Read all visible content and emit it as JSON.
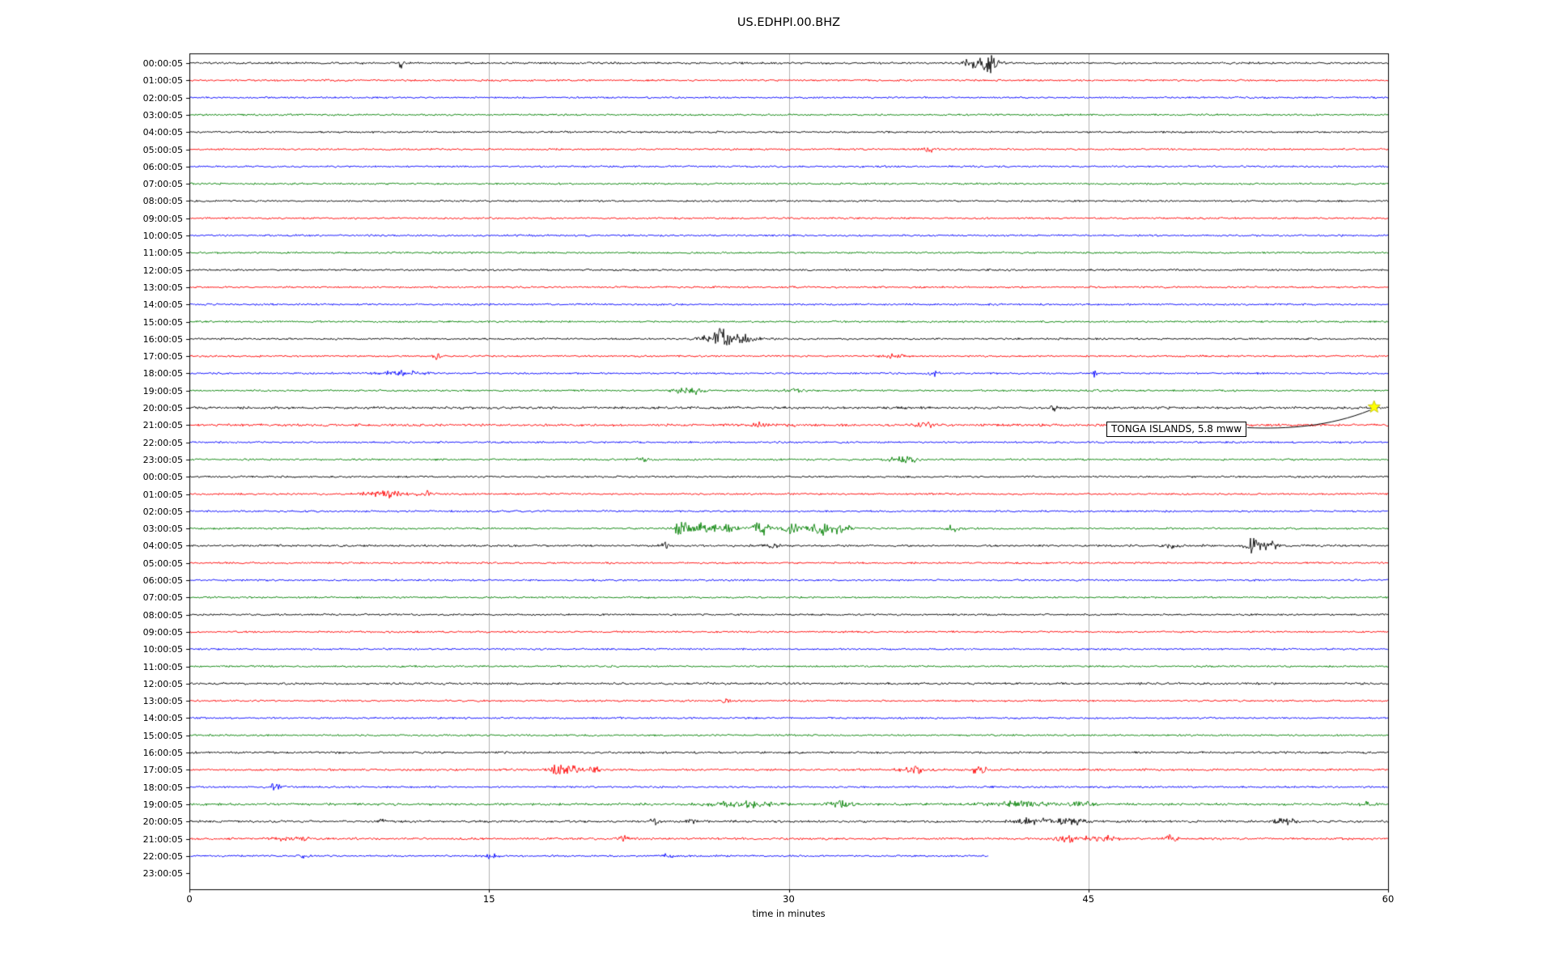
{
  "chart_data": {
    "type": "line",
    "variant": "helicorder-seismogram",
    "title": "US.EDHPI.00.BHZ",
    "xlabel": "time in minutes",
    "xlim": [
      0,
      60
    ],
    "xticks": [
      0,
      15,
      30,
      45,
      60
    ],
    "grid": "vertical-only",
    "grid_color": "#b0b0b0",
    "trace_colors_cycle": [
      "#000000",
      "#ff0000",
      "#0000ff",
      "#008000"
    ],
    "rows": [
      {
        "label": "00:00:05",
        "noise": 1.1
      },
      {
        "label": "01:00:05"
      },
      {
        "label": "02:00:05"
      },
      {
        "label": "03:00:05"
      },
      {
        "label": "04:00:05"
      },
      {
        "label": "05:00:05"
      },
      {
        "label": "06:00:05"
      },
      {
        "label": "07:00:05"
      },
      {
        "label": "08:00:05"
      },
      {
        "label": "09:00:05"
      },
      {
        "label": "10:00:05"
      },
      {
        "label": "11:00:05"
      },
      {
        "label": "12:00:05"
      },
      {
        "label": "13:00:05"
      },
      {
        "label": "14:00:05"
      },
      {
        "label": "15:00:05"
      },
      {
        "label": "16:00:05"
      },
      {
        "label": "17:00:05"
      },
      {
        "label": "18:00:05"
      },
      {
        "label": "19:00:05"
      },
      {
        "label": "20:00:05",
        "noise": 1.3
      },
      {
        "label": "21:00:05",
        "noise": 1.3
      },
      {
        "label": "22:00:05"
      },
      {
        "label": "23:00:05"
      },
      {
        "label": "00:00:05"
      },
      {
        "label": "01:00:05"
      },
      {
        "label": "02:00:05"
      },
      {
        "label": "03:00:05"
      },
      {
        "label": "04:00:05",
        "noise": 1.15
      },
      {
        "label": "05:00:05"
      },
      {
        "label": "06:00:05"
      },
      {
        "label": "07:00:05"
      },
      {
        "label": "08:00:05"
      },
      {
        "label": "09:00:05"
      },
      {
        "label": "10:00:05"
      },
      {
        "label": "11:00:05"
      },
      {
        "label": "12:00:05",
        "noise": 1.15
      },
      {
        "label": "13:00:05"
      },
      {
        "label": "14:00:05"
      },
      {
        "label": "15:00:05"
      },
      {
        "label": "16:00:05",
        "noise": 1.1
      },
      {
        "label": "17:00:05",
        "noise": 1.15
      },
      {
        "label": "18:00:05"
      },
      {
        "label": "19:00:05",
        "noise": 1.25
      },
      {
        "label": "20:00:05",
        "noise": 1.2
      },
      {
        "label": "21:00:05",
        "noise": 1.2
      },
      {
        "label": "22:00:05",
        "end_minute": 40
      },
      {
        "label": "23:00:05",
        "no_trace": true
      }
    ],
    "events": [
      {
        "row": 0,
        "minute": 10.6,
        "amp": 7,
        "width": 0.08
      },
      {
        "row": 0,
        "minute": 39.2,
        "amp": 9,
        "width": 0.25
      },
      {
        "row": 0,
        "minute": 40.0,
        "amp": 13,
        "width": 0.35
      },
      {
        "row": 5,
        "minute": 37.0,
        "amp": 3,
        "width": 0.3
      },
      {
        "row": 16,
        "minute": 25.8,
        "amp": 4,
        "width": 0.3
      },
      {
        "row": 16,
        "minute": 26.6,
        "amp": 15,
        "width": 0.25
      },
      {
        "row": 16,
        "minute": 27.6,
        "amp": 7,
        "width": 0.6
      },
      {
        "row": 17,
        "minute": 12.4,
        "amp": 6,
        "width": 0.12
      },
      {
        "row": 17,
        "minute": 35.2,
        "amp": 3,
        "width": 0.4
      },
      {
        "row": 18,
        "minute": 10.7,
        "amp": 3,
        "width": 0.8
      },
      {
        "row": 18,
        "minute": 37.3,
        "amp": 4,
        "width": 0.15
      },
      {
        "row": 18,
        "minute": 45.3,
        "amp": 10,
        "width": 0.06
      },
      {
        "row": 19,
        "minute": 25.0,
        "amp": 5,
        "width": 0.6
      },
      {
        "row": 19,
        "minute": 30.3,
        "amp": 3,
        "width": 0.4
      },
      {
        "row": 20,
        "minute": 43.3,
        "amp": 3,
        "width": 0.15
      },
      {
        "row": 21,
        "minute": 28.4,
        "amp": 4,
        "width": 0.2
      },
      {
        "row": 21,
        "minute": 30.0,
        "amp": 3,
        "width": 0.2
      },
      {
        "row": 21,
        "minute": 36.8,
        "amp": 4,
        "width": 0.3
      },
      {
        "row": 23,
        "minute": 22.6,
        "amp": 3,
        "width": 0.3
      },
      {
        "row": 23,
        "minute": 35.8,
        "amp": 5,
        "width": 0.5
      },
      {
        "row": 25,
        "minute": 9.7,
        "amp": 5,
        "width": 0.7
      },
      {
        "row": 25,
        "minute": 11.8,
        "amp": 4,
        "width": 0.3
      },
      {
        "row": 27,
        "minute": 24.6,
        "amp": 11,
        "width": 0.25
      },
      {
        "row": 27,
        "minute": 25.6,
        "amp": 8,
        "width": 0.3
      },
      {
        "row": 27,
        "minute": 26.8,
        "amp": 7,
        "width": 0.5
      },
      {
        "row": 27,
        "minute": 28.6,
        "amp": 11,
        "width": 0.3
      },
      {
        "row": 27,
        "minute": 30.2,
        "amp": 7,
        "width": 0.4
      },
      {
        "row": 27,
        "minute": 31.6,
        "amp": 10,
        "width": 0.4
      },
      {
        "row": 27,
        "minute": 32.6,
        "amp": 5,
        "width": 0.4
      },
      {
        "row": 27,
        "minute": 38.2,
        "amp": 4,
        "width": 0.3
      },
      {
        "row": 28,
        "minute": 23.8,
        "amp": 5,
        "width": 0.2
      },
      {
        "row": 28,
        "minute": 29.2,
        "amp": 3,
        "width": 0.2
      },
      {
        "row": 28,
        "minute": 49.3,
        "amp": 3,
        "width": 0.3
      },
      {
        "row": 28,
        "minute": 53.2,
        "amp": 11,
        "width": 0.25
      },
      {
        "row": 28,
        "minute": 54.1,
        "amp": 5,
        "width": 0.3
      },
      {
        "row": 37,
        "minute": 26.9,
        "amp": 3,
        "width": 0.15
      },
      {
        "row": 41,
        "minute": 18.4,
        "amp": 8,
        "width": 0.25
      },
      {
        "row": 41,
        "minute": 19.2,
        "amp": 6,
        "width": 0.35
      },
      {
        "row": 41,
        "minute": 20.3,
        "amp": 4,
        "width": 0.2
      },
      {
        "row": 41,
        "minute": 36.2,
        "amp": 5,
        "width": 0.4
      },
      {
        "row": 41,
        "minute": 39.5,
        "amp": 5,
        "width": 0.3
      },
      {
        "row": 42,
        "minute": 4.3,
        "amp": 5,
        "width": 0.3
      },
      {
        "row": 43,
        "minute": 27.8,
        "amp": 4,
        "width": 1.2
      },
      {
        "row": 43,
        "minute": 32.6,
        "amp": 6,
        "width": 0.4
      },
      {
        "row": 43,
        "minute": 41.5,
        "amp": 3,
        "width": 1.2
      },
      {
        "row": 43,
        "minute": 44.8,
        "amp": 4,
        "width": 0.4
      },
      {
        "row": 43,
        "minute": 59.0,
        "amp": 3,
        "width": 0.3
      },
      {
        "row": 44,
        "minute": 9.6,
        "amp": 4,
        "width": 0.15
      },
      {
        "row": 44,
        "minute": 23.2,
        "amp": 4,
        "width": 0.2
      },
      {
        "row": 44,
        "minute": 25.1,
        "amp": 4,
        "width": 0.15
      },
      {
        "row": 44,
        "minute": 42.3,
        "amp": 4,
        "width": 0.8
      },
      {
        "row": 44,
        "minute": 44.3,
        "amp": 4,
        "width": 0.6
      },
      {
        "row": 44,
        "minute": 54.9,
        "amp": 4,
        "width": 0.4
      },
      {
        "row": 45,
        "minute": 5.2,
        "amp": 3,
        "width": 0.6
      },
      {
        "row": 45,
        "minute": 21.9,
        "amp": 5,
        "width": 0.2
      },
      {
        "row": 45,
        "minute": 44.2,
        "amp": 5,
        "width": 0.6
      },
      {
        "row": 45,
        "minute": 45.8,
        "amp": 4,
        "width": 0.4
      },
      {
        "row": 45,
        "minute": 49.2,
        "amp": 8,
        "width": 0.2
      },
      {
        "row": 46,
        "minute": 5.8,
        "amp": 3,
        "width": 0.2
      },
      {
        "row": 46,
        "minute": 15.1,
        "amp": 4,
        "width": 0.2
      },
      {
        "row": 46,
        "minute": 24.0,
        "amp": 4,
        "width": 0.2
      }
    ],
    "annotation": {
      "label": "TONGA ISLANDS, 5.8 mww",
      "row": 20,
      "minute": 59.3,
      "marker": "star",
      "marker_color": "#ffff00"
    }
  }
}
